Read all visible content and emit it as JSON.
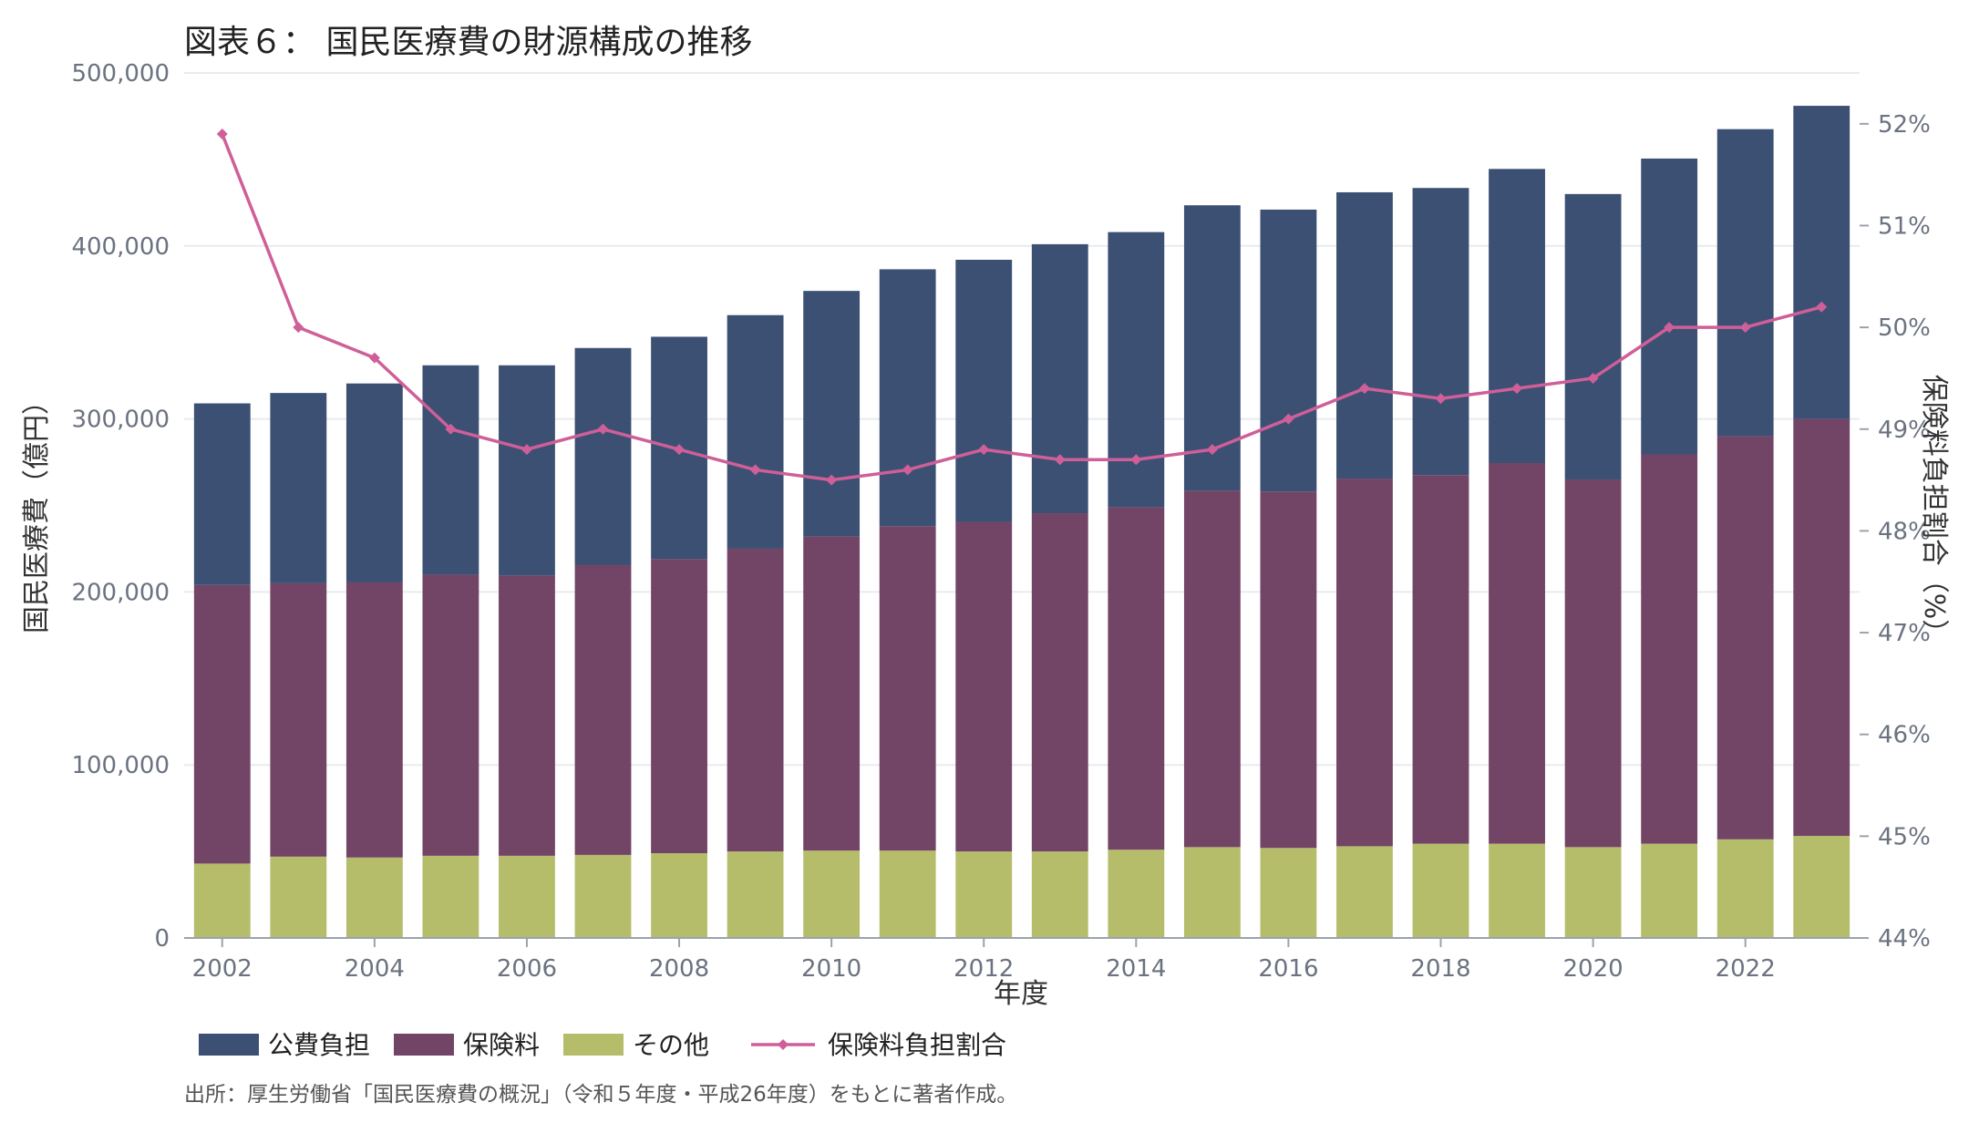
{
  "chart_data": {
    "type": "bar",
    "stacked": true,
    "title": "図表６： 国民医療費の財源構成の推移",
    "xlabel": "年度",
    "ylabel": "国民医療費（億円）",
    "y2label": "保険料負担割合（%）",
    "ylim": [
      0,
      500000
    ],
    "y2lim": [
      44,
      52.5
    ],
    "yticks": [
      "0",
      "100,000",
      "200,000",
      "300,000",
      "400,000",
      "500,000"
    ],
    "y2ticks": [
      "44%",
      "45%",
      "46%",
      "47%",
      "48%",
      "49%",
      "50%",
      "51%",
      "52%"
    ],
    "x": [
      2002,
      2003,
      2004,
      2005,
      2006,
      2007,
      2008,
      2009,
      2010,
      2011,
      2012,
      2013,
      2014,
      2015,
      2016,
      2017,
      2018,
      2019,
      2020,
      2021,
      2022,
      2023
    ],
    "xtick_labels": [
      "2002",
      "2004",
      "2006",
      "2008",
      "2010",
      "2012",
      "2014",
      "2016",
      "2018",
      "2020",
      "2022"
    ],
    "series": [
      {
        "name": "その他",
        "kind": "bar",
        "color": "#b5bd6a",
        "values": [
          43000,
          47000,
          46500,
          47500,
          47500,
          48000,
          49000,
          50000,
          50500,
          50500,
          50000,
          50000,
          51000,
          52500,
          52000,
          53000,
          54500,
          54500,
          52500,
          54500,
          57000,
          59000
        ]
      },
      {
        "name": "保険料",
        "kind": "bar",
        "color": "#724466",
        "values": [
          161000,
          158000,
          159000,
          162500,
          162000,
          167500,
          170000,
          175000,
          181500,
          187500,
          190500,
          195500,
          198000,
          206000,
          206000,
          212500,
          213000,
          220000,
          212500,
          225000,
          233000,
          241000
        ]
      },
      {
        "name": "公費負担",
        "kind": "bar",
        "color": "#3c5073",
        "values": [
          105000,
          110000,
          115000,
          121000,
          121500,
          125500,
          128500,
          135000,
          142000,
          148500,
          151500,
          155500,
          159000,
          165000,
          163000,
          165500,
          166000,
          170000,
          165000,
          171000,
          177500,
          181000
        ]
      },
      {
        "name": "保険料負担割合",
        "kind": "line",
        "axis": "right",
        "color": "#cf5f98",
        "values": [
          51.9,
          50.0,
          49.7,
          49.0,
          48.8,
          49.0,
          48.8,
          48.6,
          48.5,
          48.6,
          48.8,
          48.7,
          48.7,
          48.8,
          49.1,
          49.4,
          49.3,
          49.4,
          49.5,
          50.0,
          50.0,
          50.2
        ]
      }
    ],
    "legend_order": [
      "公費負担",
      "保険料",
      "その他",
      "保険料負担割合"
    ],
    "legend_position": "bottom-left",
    "grid": true,
    "source": "出所：厚生労働省「国民医療費の概況」（令和５年度・平成26年度）をもとに著者作成。"
  }
}
